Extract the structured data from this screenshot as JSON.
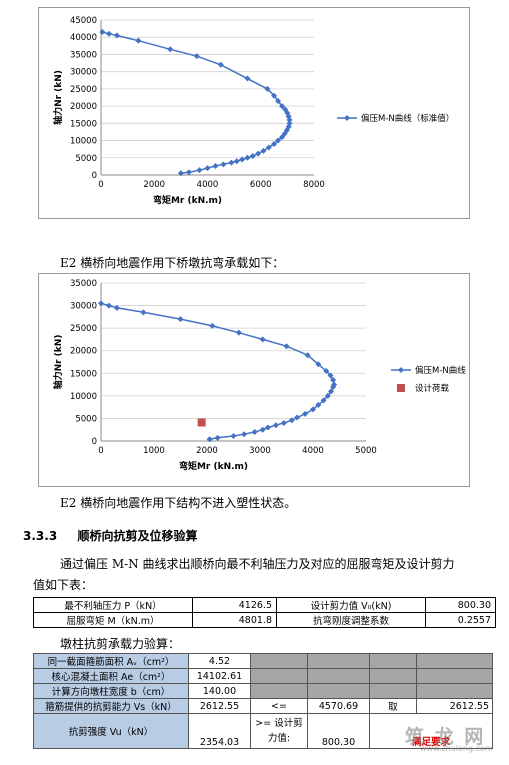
{
  "chart_data": [
    {
      "type": "scatter",
      "xlabel": "弯矩Mr (kN.m)",
      "ylabel": "轴力Nr (kN)",
      "xlim": [
        0,
        8000
      ],
      "ylim": [
        0,
        45000
      ],
      "xticks": [
        0,
        2000,
        4000,
        6000,
        8000
      ],
      "yticks": [
        0,
        5000,
        10000,
        15000,
        20000,
        25000,
        30000,
        35000,
        40000,
        45000
      ],
      "legend": "right",
      "series": [
        {
          "name": "偏压M-N曲线（标准值）",
          "color": "#4472c4",
          "marker": "diamond",
          "x": [
            3000,
            3300,
            3700,
            4000,
            4300,
            4600,
            4900,
            5100,
            5300,
            5500,
            5700,
            5900,
            6100,
            6300,
            6500,
            6650,
            6800,
            6900,
            6980,
            7050,
            7080,
            7080,
            7050,
            7000,
            6920,
            6800,
            6650,
            6500,
            6250,
            5500,
            4500,
            3600,
            2600,
            1400,
            600,
            300,
            50
          ],
          "y": [
            500,
            800,
            1400,
            2000,
            2600,
            3100,
            3600,
            4000,
            4500,
            5000,
            5500,
            6200,
            7000,
            8000,
            9000,
            10000,
            11000,
            12000,
            13000,
            14000,
            15000,
            16000,
            17000,
            18000,
            19000,
            20000,
            21500,
            23000,
            25000,
            28000,
            32000,
            34500,
            36500,
            39000,
            40500,
            41000,
            41500
          ]
        }
      ]
    },
    {
      "type": "scatter",
      "xlabel": "弯矩Mr (kN.m)",
      "ylabel": "轴力Nr (kN)",
      "xlim": [
        0,
        5000
      ],
      "ylim": [
        0,
        35000
      ],
      "xticks": [
        0,
        1000,
        2000,
        3000,
        4000,
        5000
      ],
      "yticks": [
        0,
        5000,
        10000,
        15000,
        20000,
        25000,
        30000,
        35000
      ],
      "legend": "right",
      "series": [
        {
          "name": "偏压M-N曲线",
          "color": "#4472c4",
          "marker": "diamond",
          "x": [
            2050,
            2200,
            2500,
            2700,
            2900,
            3050,
            3150,
            3300,
            3450,
            3600,
            3700,
            3850,
            4000,
            4100,
            4200,
            4280,
            4340,
            4380,
            4400,
            4380,
            4330,
            4250,
            4100,
            3900,
            3500,
            3050,
            2600,
            2100,
            1500,
            800,
            300,
            150,
            0
          ],
          "y": [
            400,
            700,
            1100,
            1500,
            2000,
            2500,
            3000,
            3500,
            4000,
            4600,
            5200,
            6000,
            7000,
            8000,
            9000,
            10000,
            11000,
            12000,
            12500,
            13500,
            14500,
            15500,
            17000,
            19000,
            21000,
            22500,
            24000,
            25500,
            27000,
            28500,
            29500,
            30000,
            30500
          ]
        },
        {
          "name": "设计荷载",
          "color": "#c0504d",
          "marker": "square",
          "x": [
            1900
          ],
          "y": [
            4100
          ]
        }
      ]
    }
  ],
  "text": {
    "para1": "E2 横桥向地震作用下桥墩抗弯承载如下：",
    "para2": "E2 横桥向地震作用下结构不进入塑性状态。",
    "section_no": "3.3.3",
    "section_title": "顺桥向抗剪及位移验算",
    "para3_line1": "通过偏压 M-N 曲线求出顺桥向最不利轴压力及对应的屈服弯矩及设计剪力",
    "para3_line2": "值如下表：",
    "subtitle": "墩柱抗剪承载力验算："
  },
  "table1": {
    "rows": [
      {
        "label": "最不利轴压力 P（kN）",
        "value": "4126.5",
        "label2": "设计剪力值 V₀(kN)",
        "value2": "800.30"
      },
      {
        "label": "屈服弯矩 M（kN.m）",
        "value": "4801.8",
        "label2": "抗弯刚度调整系数",
        "value2": "0.2557"
      }
    ]
  },
  "table2": {
    "r1_label": "同一截面箍筋面积 Aᵥ（cm²）",
    "r1_value": "4.52",
    "r2_label": "核心混凝土面积 Ae（cm²）",
    "r2_value": "14102.61",
    "r3_label": "计算方向墩柱宽度 b（cm）",
    "r3_value": "140.00",
    "r4_label": "箍筋提供的抗剪能力 Vs（kN）",
    "r4_value": "2612.55",
    "r4_op": "<=",
    "r4_value2": "4570.69",
    "r4_take": "取",
    "r4_value3": "2612.55",
    "r5_label": "抗剪强度 Vu（kN）",
    "r5_value": "2354.03",
    "r5_op_line1": ">= 设计剪",
    "r5_op_line2": "力值:",
    "r5_value2": "800.30",
    "r5_result": "满足要求"
  },
  "watermark": {
    "text": "筑 龙 网",
    "url": "www.zhulong.com"
  }
}
